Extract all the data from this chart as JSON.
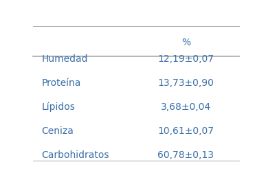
{
  "header_col2": "%",
  "rows": [
    [
      "Humedad",
      "12,19±0,07"
    ],
    [
      "Proteína",
      "13,73±0,90"
    ],
    [
      "Lípidos",
      "3,68±0,04"
    ],
    [
      "Ceniza",
      "10,61±0,07"
    ],
    [
      "Carbohidratos",
      "60,78±0,13"
    ]
  ],
  "text_color": "#3a6fa8",
  "line_color": "#aaaaaa",
  "background_color": "#ffffff",
  "font_size": 10
}
